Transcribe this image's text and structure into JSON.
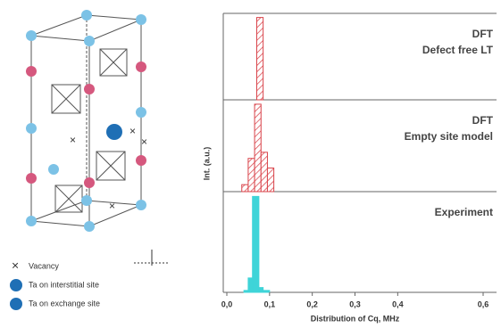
{
  "chart_data": [
    {
      "type": "histogram",
      "labels": [
        "DFT",
        "Defect free LT"
      ],
      "bins": [
        0.07,
        0.085
      ],
      "counts": [
        1.0
      ],
      "color": "#d9434a",
      "hatch": true,
      "ylim": [
        0,
        1.05
      ]
    },
    {
      "type": "histogram",
      "labels": [
        "DFT",
        "Empty site model"
      ],
      "ylabel": "Int. (a.u.)",
      "bins": [
        0.035,
        0.05,
        0.065,
        0.08,
        0.095,
        0.11
      ],
      "counts": [
        0.08,
        0.38,
        1.0,
        0.45,
        0.27
      ],
      "color": "#d9434a",
      "hatch": true,
      "ylim": [
        0,
        1.05
      ]
    },
    {
      "type": "histogram",
      "labels": [
        "Experiment"
      ],
      "xlabel": "Distribution of Cq, MHz",
      "bins": [
        0.04,
        0.05,
        0.06,
        0.075,
        0.085,
        0.1
      ],
      "counts": [
        0.02,
        0.15,
        1.0,
        0.05,
        0.02
      ],
      "color": "#3fd4d8",
      "hatch": false,
      "ylim": [
        0,
        1.05
      ],
      "xlim": [
        0,
        0.6
      ],
      "xticks": [
        {
          "value": 0,
          "label": "0,0"
        },
        {
          "value": 0.1,
          "label": "0,1"
        },
        {
          "value": 0.2,
          "label": "0,2"
        },
        {
          "value": 0.3,
          "label": "0,3"
        },
        {
          "value": 0.4,
          "label": "0,4"
        },
        {
          "value": 0.6,
          "label": "0,6"
        }
      ]
    }
  ],
  "diagram": {
    "legend": [
      "Vacancy",
      "Ta on interstitial site",
      "Ta on exchange site"
    ]
  }
}
